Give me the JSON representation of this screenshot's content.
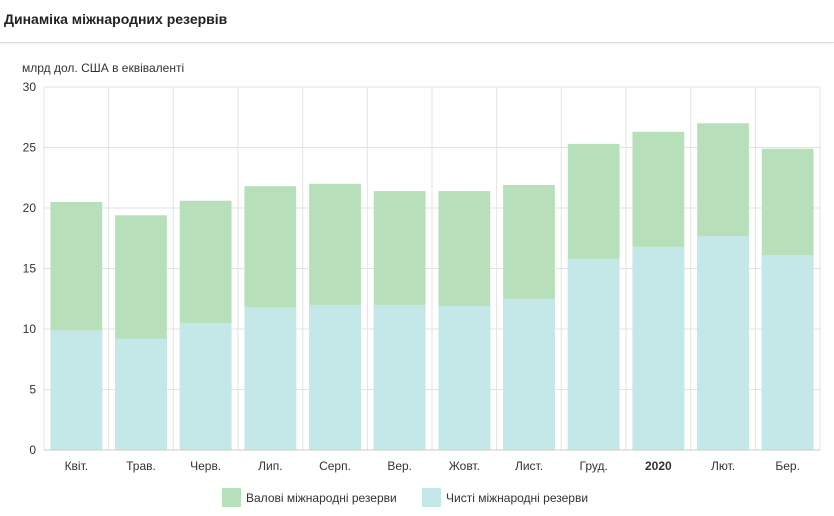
{
  "header": {
    "title": "Динаміка міжнародних резервів"
  },
  "chart_data": {
    "type": "bar",
    "stacked": "overlay",
    "unit_label": "млрд дол. США в еквіваленті",
    "ylim": [
      0,
      30
    ],
    "yticks": [
      0,
      5,
      10,
      15,
      20,
      25,
      30
    ],
    "grid": true,
    "categories": [
      "Квіт.",
      "Трав.",
      "Черв.",
      "Лип.",
      "Серп.",
      "Вер.",
      "Жовт.",
      "Лист.",
      "Груд.",
      "2020",
      "Лют.",
      "Бер."
    ],
    "bold_categories": [
      "2020"
    ],
    "series": [
      {
        "name": "Валові міжнародні резерви",
        "color": "#b7dfb9",
        "values": [
          20.5,
          19.4,
          20.6,
          21.8,
          22.0,
          21.4,
          21.4,
          21.9,
          25.3,
          26.3,
          27.0,
          24.9
        ]
      },
      {
        "name": "Чисті міжнародні резерви",
        "color": "#c4e8e8",
        "values": [
          9.9,
          9.2,
          10.5,
          11.8,
          12.0,
          12.0,
          11.9,
          12.5,
          15.8,
          16.8,
          17.7,
          16.1
        ]
      }
    ],
    "legend_position": "bottom-center"
  }
}
